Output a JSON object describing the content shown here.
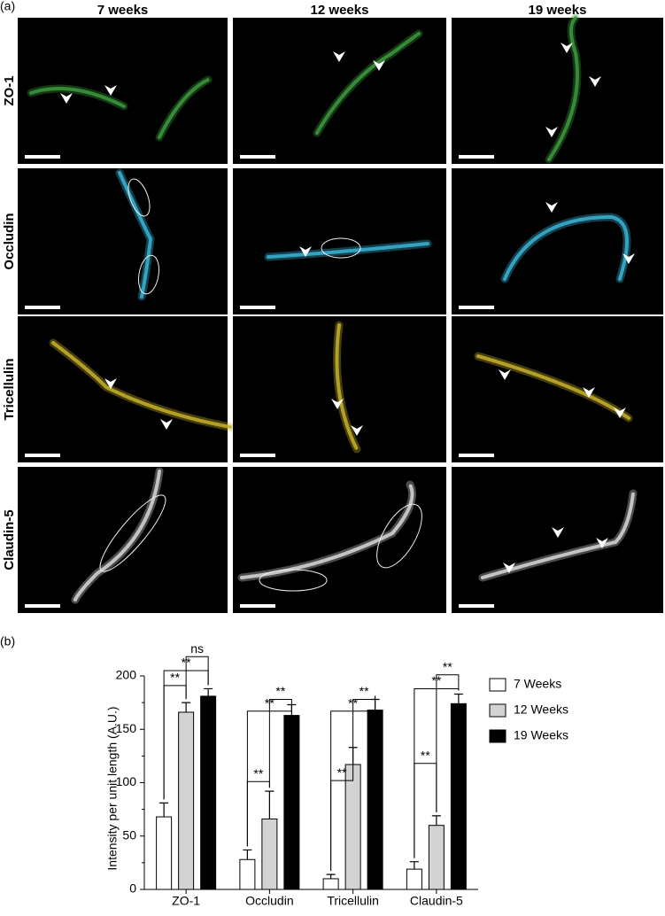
{
  "panel_a": {
    "label": "(a)",
    "columns": [
      "7 weeks",
      "12 weeks",
      "19 weeks"
    ],
    "rows": [
      "ZO-1",
      "Occludin",
      "Tricellulin",
      "Claudin-5"
    ]
  },
  "panel_b": {
    "label": "(b)"
  },
  "chart_data": {
    "type": "bar",
    "y_label": "Intensity per unit length (A.U.)",
    "categories": [
      "ZO-1",
      "Occludin",
      "Tricellulin",
      "Claudin-5"
    ],
    "series": [
      {
        "name": "7 Weeks",
        "color": "#ffffff",
        "values": [
          68,
          28,
          10,
          19
        ],
        "errors": [
          13,
          9,
          4,
          7
        ]
      },
      {
        "name": "12 Weeks",
        "color": "#d3d3d3",
        "values": [
          166,
          66,
          117,
          60
        ],
        "errors": [
          9,
          26,
          16,
          9
        ]
      },
      {
        "name": "19 Weeks",
        "color": "#000000",
        "values": [
          181,
          163,
          168,
          174
        ],
        "errors": [
          7,
          10,
          10,
          9
        ]
      }
    ],
    "ylim": [
      0,
      200
    ],
    "yticks": [
      0,
      50,
      100,
      150,
      200
    ],
    "annotations": [
      "ns",
      "**",
      "**",
      "**",
      "**",
      "**",
      "**",
      "**",
      "**",
      "**",
      "**",
      "**"
    ],
    "legend": "right"
  }
}
